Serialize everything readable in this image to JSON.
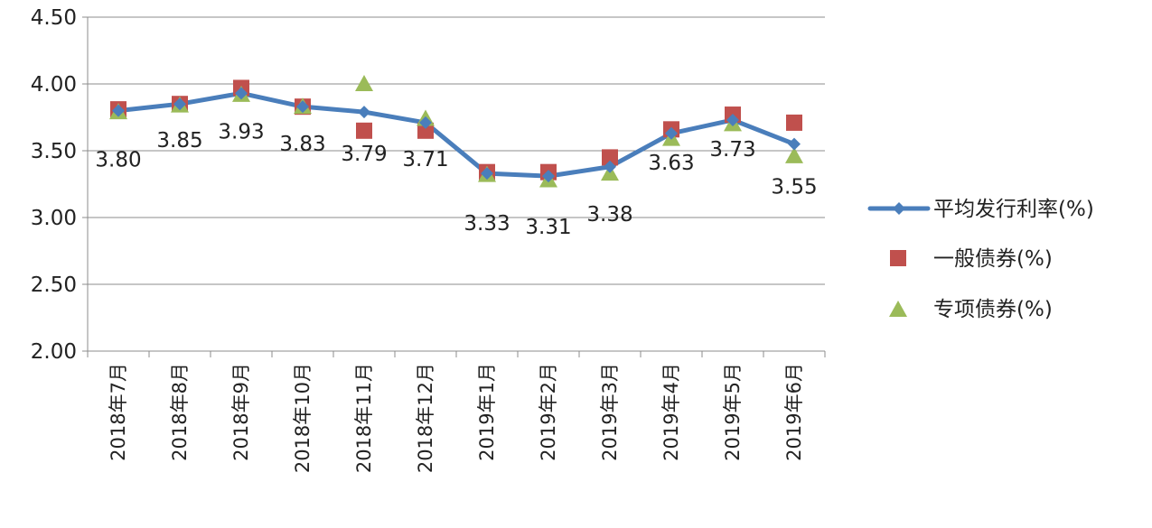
{
  "chart_data": {
    "type": "line",
    "categories": [
      "2018年7月",
      "2018年8月",
      "2018年9月",
      "2018年10月",
      "2018年11月",
      "2018年12月",
      "2019年1月",
      "2019年2月",
      "2019年3月",
      "2019年4月",
      "2019年5月",
      "2019年6月"
    ],
    "ylim": [
      2.0,
      4.5
    ],
    "yticks": [
      "2.00",
      "2.50",
      "3.00",
      "3.50",
      "4.00",
      "4.50"
    ],
    "grid": true,
    "legend_position": "right",
    "series": [
      {
        "name": "平均发行利率(%)",
        "kind": "line",
        "marker": "diamond",
        "color": "#4a7ebb",
        "values": [
          3.8,
          3.85,
          3.93,
          3.83,
          3.79,
          3.71,
          3.33,
          3.31,
          3.38,
          3.63,
          3.73,
          3.55
        ],
        "labels": [
          "3.80",
          "3.85",
          "3.93",
          "3.83",
          "3.79",
          "3.71",
          "3.33",
          "3.31",
          "3.38",
          "3.63",
          "3.73",
          "3.55"
        ]
      },
      {
        "name": "一般债券(%)",
        "kind": "scatter",
        "marker": "square",
        "color": "#c0504d",
        "values": [
          3.81,
          3.85,
          3.97,
          3.83,
          3.65,
          3.65,
          3.34,
          3.34,
          3.45,
          3.66,
          3.77,
          3.71
        ]
      },
      {
        "name": "专项债券(%)",
        "kind": "scatter",
        "marker": "triangle",
        "color": "#9bbb59",
        "values": [
          3.79,
          3.84,
          3.92,
          3.83,
          4.0,
          3.74,
          3.32,
          3.28,
          3.33,
          3.59,
          3.7,
          3.46
        ]
      }
    ]
  }
}
